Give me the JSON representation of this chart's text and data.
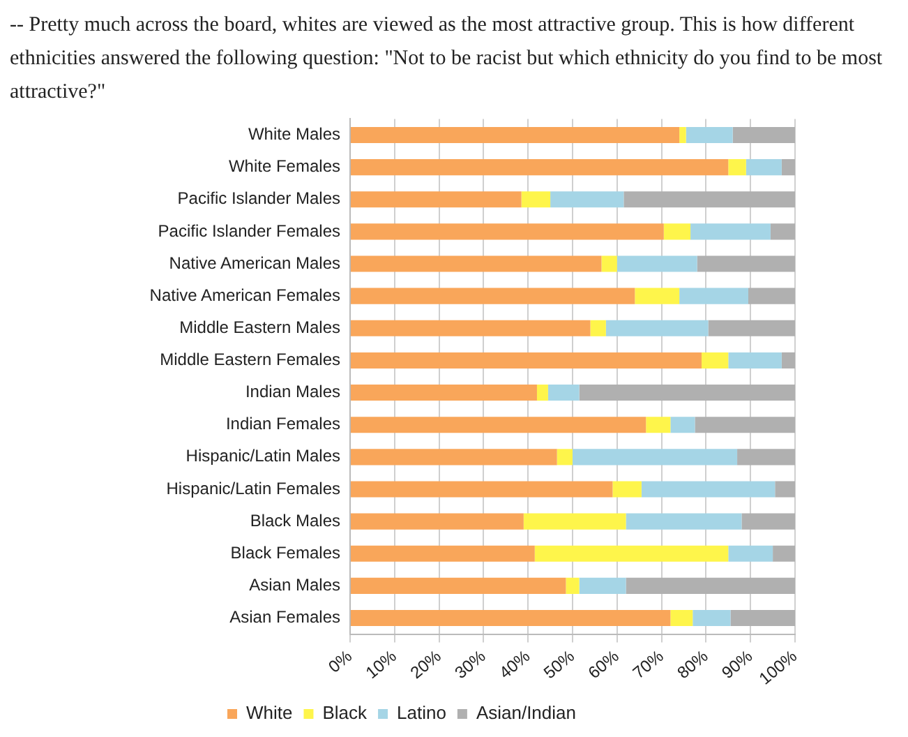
{
  "chart_data": {
    "type": "bar",
    "orientation": "horizontal",
    "stacked": true,
    "title": "-- Pretty much across the board, whites are viewed as the most attractive group. This is how different ethnicities answered the following question: \"Not to be racist but which ethnicity do you find to be most attractive?\"",
    "categories": [
      "White Males",
      "White Females",
      "Pacific Islander Males",
      "Pacific Islander Females",
      "Native American Males",
      "Native American Females",
      "Middle Eastern Males",
      "Middle Eastern Females",
      "Indian Males",
      "Indian Females",
      "Hispanic/Latin Males",
      "Hispanic/Latin Females",
      "Black Males",
      "Black Females",
      "Asian Males",
      "Asian Females"
    ],
    "series": [
      {
        "name": "White",
        "color": "#f9a65a",
        "values": [
          74,
          85,
          38.5,
          70.5,
          56.5,
          64,
          54,
          79,
          42,
          66.5,
          46.5,
          59,
          39,
          41.5,
          48.5,
          72
        ]
      },
      {
        "name": "Black",
        "color": "#fef54b",
        "values": [
          1.5,
          4,
          6.5,
          6,
          3.5,
          10,
          3.5,
          6,
          2.5,
          5.5,
          3.5,
          6.5,
          23,
          43.5,
          3,
          5
        ]
      },
      {
        "name": "Latino",
        "color": "#a5d5e6",
        "values": [
          10.5,
          8,
          16.5,
          18,
          18,
          15.5,
          23,
          12,
          7,
          5.5,
          37,
          30,
          26,
          10,
          10.5,
          8.5
        ]
      },
      {
        "name": "Asian/Indian",
        "color": "#b0b0b0",
        "values": [
          14,
          3,
          38.5,
          5.5,
          22,
          10.5,
          19.5,
          3,
          48.5,
          22.5,
          13,
          4.5,
          12,
          5,
          38,
          14.5
        ]
      }
    ],
    "xlim": [
      0,
      100
    ],
    "xticks": [
      {
        "value": 0,
        "label": "0%"
      },
      {
        "value": 10,
        "label": "10%"
      },
      {
        "value": 20,
        "label": "20%"
      },
      {
        "value": 30,
        "label": "30%"
      },
      {
        "value": 40,
        "label": "40%"
      },
      {
        "value": 50,
        "label": "50%"
      },
      {
        "value": 60,
        "label": "60%"
      },
      {
        "value": 70,
        "label": "70%"
      },
      {
        "value": 80,
        "label": "80%"
      },
      {
        "value": 90,
        "label": "90%"
      },
      {
        "value": 100,
        "label": "100%"
      }
    ],
    "grid": "x",
    "legend": "bottom"
  }
}
